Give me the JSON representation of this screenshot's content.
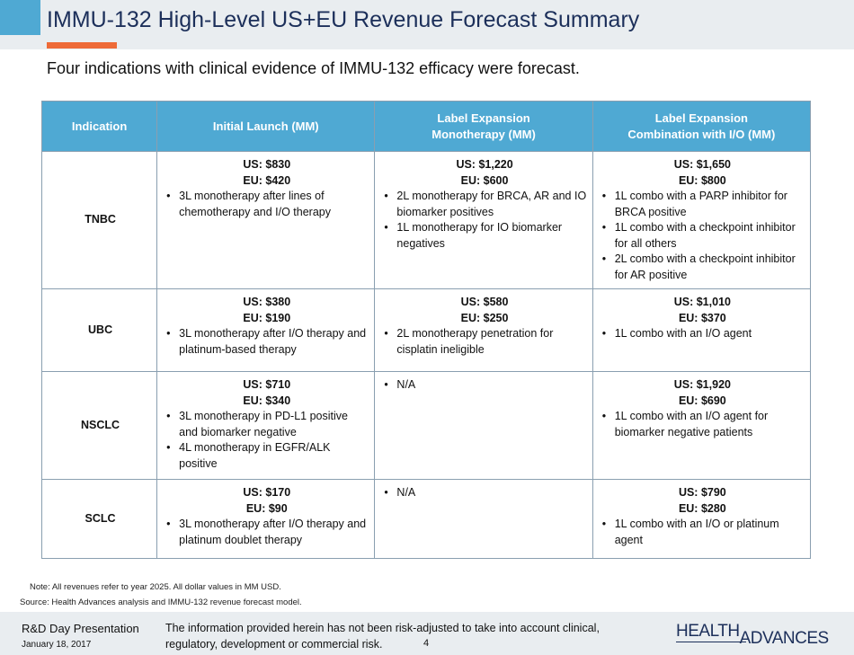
{
  "header": {
    "title": "IMMU-132 High-Level US+EU Revenue Forecast Summary",
    "subtitle": "Four indications with clinical evidence of IMMU-132 efficacy were forecast."
  },
  "table": {
    "columns": [
      "Indication",
      "Initial Launch (MM)",
      "Label Expansion\nMonotherapy (MM)",
      "Label Expansion\nCombination with I/O (MM)"
    ],
    "rows": [
      {
        "indication": "TNBC",
        "cells": [
          {
            "us": "US: $830",
            "eu": "EU: $420",
            "bullets": [
              "3L monotherapy after lines of chemotherapy and I/O therapy"
            ]
          },
          {
            "us": "US: $1,220",
            "eu": "EU: $600",
            "bullets": [
              "2L monotherapy for BRCA, AR and IO biomarker positives",
              "1L monotherapy for IO biomarker negatives"
            ]
          },
          {
            "us": "US: $1,650",
            "eu": "EU: $800",
            "bullets": [
              "1L combo with a PARP inhibitor for BRCA positive",
              "1L combo with a checkpoint inhibitor for all others",
              "2L combo with a checkpoint inhibitor for AR positive"
            ]
          }
        ]
      },
      {
        "indication": "UBC",
        "cells": [
          {
            "us": "US: $380",
            "eu": "EU: $190",
            "bullets": [
              "3L monotherapy after I/O therapy and platinum-based therapy"
            ]
          },
          {
            "us": "US: $580",
            "eu": "EU: $250",
            "bullets": [
              "2L monotherapy penetration for cisplatin ineligible"
            ]
          },
          {
            "us": "US: $1,010",
            "eu": "EU: $370",
            "bullets": [
              "1L combo with an I/O agent"
            ]
          }
        ]
      },
      {
        "indication": "NSCLC",
        "cells": [
          {
            "us": "US: $710",
            "eu": "EU: $340",
            "bullets": [
              "3L monotherapy in PD-L1 positive and biomarker negative",
              "4L monotherapy in EGFR/ALK positive"
            ]
          },
          {
            "us": null,
            "eu": null,
            "bullets": [
              "N/A"
            ]
          },
          {
            "us": "US: $1,920",
            "eu": "EU: $690",
            "bullets": [
              "1L combo with an I/O agent for biomarker negative patients"
            ]
          }
        ]
      },
      {
        "indication": "SCLC",
        "cells": [
          {
            "us": "US: $170",
            "eu": "EU: $90",
            "bullets": [
              "3L monotherapy after I/O therapy and platinum doublet therapy"
            ]
          },
          {
            "us": null,
            "eu": null,
            "bullets": [
              "N/A"
            ]
          },
          {
            "us": "US: $790",
            "eu": "EU: $280",
            "bullets": [
              "1L combo with an I/O or platinum agent"
            ]
          }
        ]
      }
    ]
  },
  "notes": {
    "note": "Note:  All revenues refer to year 2025. All dollar values in MM  USD.",
    "source": "Source:  Health Advances analysis and IMMU-132 revenue forecast  model."
  },
  "footer": {
    "presentation": "R&D Day Presentation",
    "date": "January 18, 2017",
    "disclaimer": "The information provided herein has not been risk-adjusted to take into account clinical, regulatory, development or commercial risk.",
    "page": "4",
    "logo": "HEALTH ADVANCES"
  }
}
